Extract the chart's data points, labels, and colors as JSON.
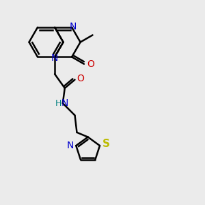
{
  "bg_color": "#ebebeb",
  "bond_color": "#000000",
  "N_color": "#0000cc",
  "O_color": "#cc0000",
  "S_color": "#bbbb00",
  "NH_color": "#008080",
  "line_width": 1.8,
  "font_size": 10,
  "xlim": [
    0,
    10
  ],
  "ylim": [
    0,
    10
  ]
}
